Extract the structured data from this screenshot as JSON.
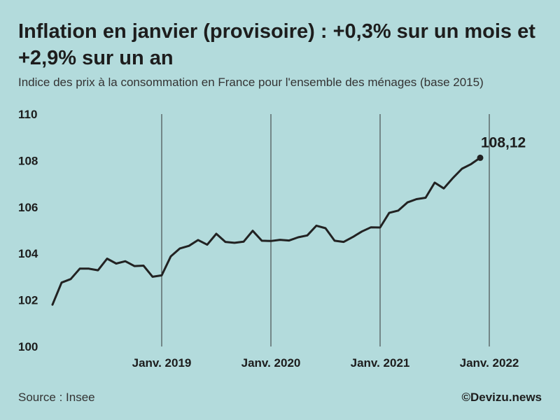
{
  "header": {
    "title": "Inflation en janvier (provisoire) : +0,3% sur un mois et +2,9% sur un an",
    "subtitle": "Indice des prix à la consommation en France pour l'ensemble des ménages (base 2015)"
  },
  "footer": {
    "source": "Source : Insee",
    "brand": "©Devizu.news"
  },
  "colors": {
    "background": "#b3dbdc",
    "line": "#222222",
    "gridline": "#333333"
  },
  "chart_data": {
    "type": "line",
    "title": "Inflation en janvier (provisoire) : +0,3% sur un mois et +2,9% sur un an",
    "subtitle": "Indice des prix à la consommation en France pour l'ensemble des ménages (base 2015)",
    "xlabel": "",
    "ylabel": "",
    "ylim": [
      100,
      110
    ],
    "yticks": [
      100,
      102,
      104,
      106,
      108,
      110
    ],
    "x_start": "2018-01",
    "x_range": [
      0,
      48
    ],
    "xticks": [
      {
        "index": 12,
        "label": "Janv. 2019"
      },
      {
        "index": 24,
        "label": "Janv. 2020"
      },
      {
        "index": 36,
        "label": "Janv. 2021"
      },
      {
        "index": 48,
        "label": "Janv. 2022"
      }
    ],
    "grid": "vertical lines at January of each year",
    "series": [
      {
        "name": "Indice des prix à la consommation",
        "values": [
          101.8,
          102.75,
          102.9,
          103.35,
          103.35,
          103.28,
          103.78,
          103.57,
          103.67,
          103.46,
          103.48,
          103.0,
          103.06,
          103.88,
          104.22,
          104.33,
          104.58,
          104.38,
          104.85,
          104.5,
          104.46,
          104.51,
          104.98,
          104.55,
          104.54,
          104.59,
          104.56,
          104.7,
          104.78,
          105.2,
          105.09,
          104.55,
          104.5,
          104.71,
          104.95,
          105.13,
          105.12,
          105.75,
          105.85,
          106.2,
          106.34,
          106.4,
          107.05,
          106.8,
          107.25,
          107.65,
          107.85,
          108.12
        ]
      }
    ],
    "end_label": "108,12",
    "end_value": 108.12
  }
}
